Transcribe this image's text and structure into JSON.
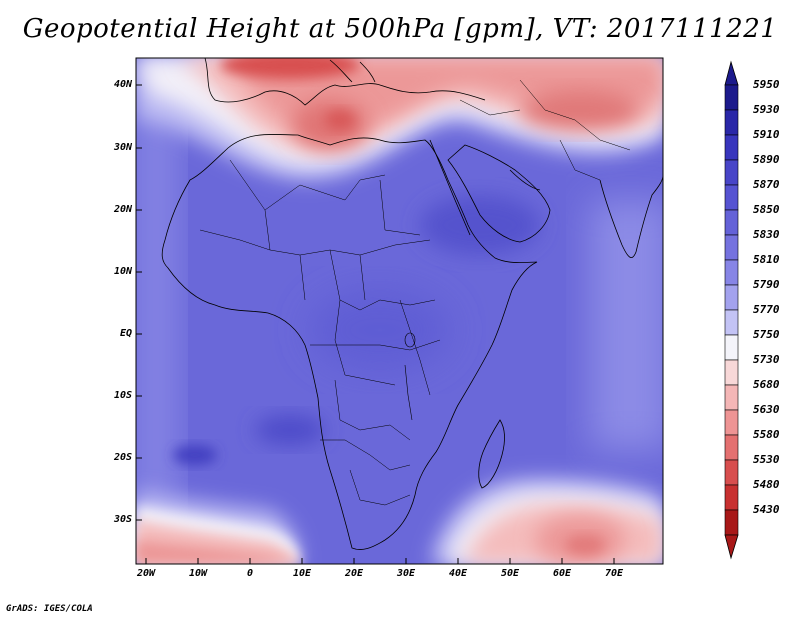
{
  "title": "Geopotential Height at 500hPa [gpm], VT: 2017111221",
  "credit": "GrADS: IGES/COLA",
  "y_axis_labels": [
    "40N",
    "30N",
    "20N",
    "10N",
    "EQ",
    "10S",
    "20S",
    "30S"
  ],
  "x_axis_labels": [
    "20W",
    "10W",
    "0",
    "10E",
    "20E",
    "30E",
    "40E",
    "50E",
    "60E",
    "70E"
  ],
  "colorbar": {
    "labels": [
      "5950",
      "5930",
      "5910",
      "5890",
      "5870",
      "5850",
      "5830",
      "5810",
      "5790",
      "5770",
      "5750",
      "5730",
      "5680",
      "5630",
      "5580",
      "5530",
      "5480",
      "5430"
    ],
    "colors": [
      "#1c1a8c",
      "#2a27a8",
      "#3835bd",
      "#4845c8",
      "#5653d2",
      "#6462d8",
      "#7572df",
      "#8785e6",
      "#a3a2ee",
      "#c3c3f5",
      "#f4f4fa",
      "#f8d8d8",
      "#f4b6b6",
      "#ee9494",
      "#e47070",
      "#d84e4e",
      "#c83030",
      "#a81818"
    ]
  },
  "map": {
    "variable": "Geopotential Height at 500hPa",
    "units": "gpm",
    "valid_time": "2017111221",
    "lon_range": [
      -23,
      80
    ],
    "lat_range": [
      -37,
      45
    ]
  }
}
